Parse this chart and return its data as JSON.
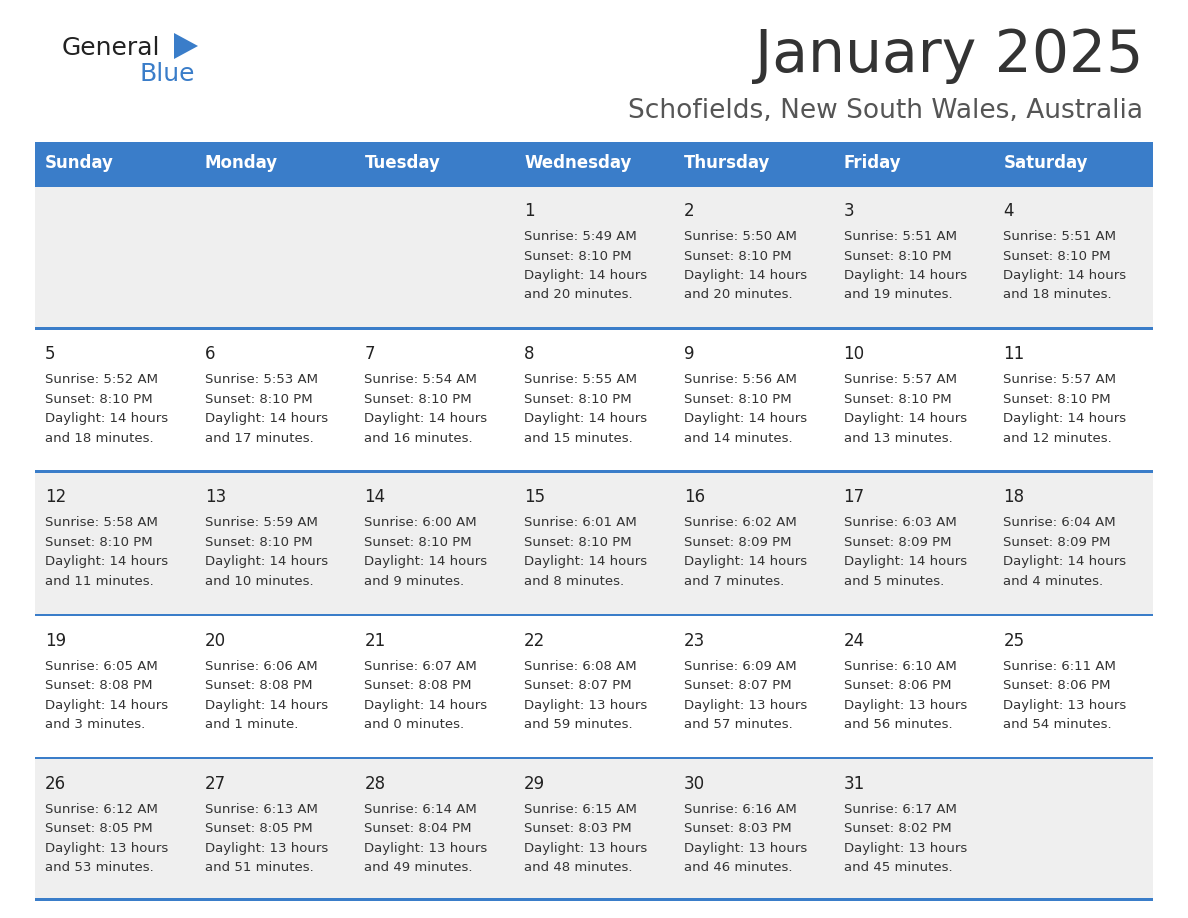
{
  "title": "January 2025",
  "subtitle": "Schofields, New South Wales, Australia",
  "days_of_week": [
    "Sunday",
    "Monday",
    "Tuesday",
    "Wednesday",
    "Thursday",
    "Friday",
    "Saturday"
  ],
  "header_bg": "#3A7DC9",
  "header_text": "#FFFFFF",
  "row_bg_even": "#EFEFEF",
  "row_bg_odd": "#FFFFFF",
  "divider_color": "#3A7DC9",
  "day_number_color": "#222222",
  "cell_text_color": "#333333",
  "calendar_data": [
    [
      null,
      null,
      null,
      {
        "day": 1,
        "sunrise": "5:49 AM",
        "sunset": "8:10 PM",
        "daylight": "14 hours and 20 minutes"
      },
      {
        "day": 2,
        "sunrise": "5:50 AM",
        "sunset": "8:10 PM",
        "daylight": "14 hours and 20 minutes"
      },
      {
        "day": 3,
        "sunrise": "5:51 AM",
        "sunset": "8:10 PM",
        "daylight": "14 hours and 19 minutes"
      },
      {
        "day": 4,
        "sunrise": "5:51 AM",
        "sunset": "8:10 PM",
        "daylight": "14 hours and 18 minutes"
      }
    ],
    [
      {
        "day": 5,
        "sunrise": "5:52 AM",
        "sunset": "8:10 PM",
        "daylight": "14 hours and 18 minutes"
      },
      {
        "day": 6,
        "sunrise": "5:53 AM",
        "sunset": "8:10 PM",
        "daylight": "14 hours and 17 minutes"
      },
      {
        "day": 7,
        "sunrise": "5:54 AM",
        "sunset": "8:10 PM",
        "daylight": "14 hours and 16 minutes"
      },
      {
        "day": 8,
        "sunrise": "5:55 AM",
        "sunset": "8:10 PM",
        "daylight": "14 hours and 15 minutes"
      },
      {
        "day": 9,
        "sunrise": "5:56 AM",
        "sunset": "8:10 PM",
        "daylight": "14 hours and 14 minutes"
      },
      {
        "day": 10,
        "sunrise": "5:57 AM",
        "sunset": "8:10 PM",
        "daylight": "14 hours and 13 minutes"
      },
      {
        "day": 11,
        "sunrise": "5:57 AM",
        "sunset": "8:10 PM",
        "daylight": "14 hours and 12 minutes"
      }
    ],
    [
      {
        "day": 12,
        "sunrise": "5:58 AM",
        "sunset": "8:10 PM",
        "daylight": "14 hours and 11 minutes"
      },
      {
        "day": 13,
        "sunrise": "5:59 AM",
        "sunset": "8:10 PM",
        "daylight": "14 hours and 10 minutes"
      },
      {
        "day": 14,
        "sunrise": "6:00 AM",
        "sunset": "8:10 PM",
        "daylight": "14 hours and 9 minutes"
      },
      {
        "day": 15,
        "sunrise": "6:01 AM",
        "sunset": "8:10 PM",
        "daylight": "14 hours and 8 minutes"
      },
      {
        "day": 16,
        "sunrise": "6:02 AM",
        "sunset": "8:09 PM",
        "daylight": "14 hours and 7 minutes"
      },
      {
        "day": 17,
        "sunrise": "6:03 AM",
        "sunset": "8:09 PM",
        "daylight": "14 hours and 5 minutes"
      },
      {
        "day": 18,
        "sunrise": "6:04 AM",
        "sunset": "8:09 PM",
        "daylight": "14 hours and 4 minutes"
      }
    ],
    [
      {
        "day": 19,
        "sunrise": "6:05 AM",
        "sunset": "8:08 PM",
        "daylight": "14 hours and 3 minutes"
      },
      {
        "day": 20,
        "sunrise": "6:06 AM",
        "sunset": "8:08 PM",
        "daylight": "14 hours and 1 minute"
      },
      {
        "day": 21,
        "sunrise": "6:07 AM",
        "sunset": "8:08 PM",
        "daylight": "14 hours and 0 minutes"
      },
      {
        "day": 22,
        "sunrise": "6:08 AM",
        "sunset": "8:07 PM",
        "daylight": "13 hours and 59 minutes"
      },
      {
        "day": 23,
        "sunrise": "6:09 AM",
        "sunset": "8:07 PM",
        "daylight": "13 hours and 57 minutes"
      },
      {
        "day": 24,
        "sunrise": "6:10 AM",
        "sunset": "8:06 PM",
        "daylight": "13 hours and 56 minutes"
      },
      {
        "day": 25,
        "sunrise": "6:11 AM",
        "sunset": "8:06 PM",
        "daylight": "13 hours and 54 minutes"
      }
    ],
    [
      {
        "day": 26,
        "sunrise": "6:12 AM",
        "sunset": "8:05 PM",
        "daylight": "13 hours and 53 minutes"
      },
      {
        "day": 27,
        "sunrise": "6:13 AM",
        "sunset": "8:05 PM",
        "daylight": "13 hours and 51 minutes"
      },
      {
        "day": 28,
        "sunrise": "6:14 AM",
        "sunset": "8:04 PM",
        "daylight": "13 hours and 49 minutes"
      },
      {
        "day": 29,
        "sunrise": "6:15 AM",
        "sunset": "8:03 PM",
        "daylight": "13 hours and 48 minutes"
      },
      {
        "day": 30,
        "sunrise": "6:16 AM",
        "sunset": "8:03 PM",
        "daylight": "13 hours and 46 minutes"
      },
      {
        "day": 31,
        "sunrise": "6:17 AM",
        "sunset": "8:02 PM",
        "daylight": "13 hours and 45 minutes"
      },
      null
    ]
  ]
}
